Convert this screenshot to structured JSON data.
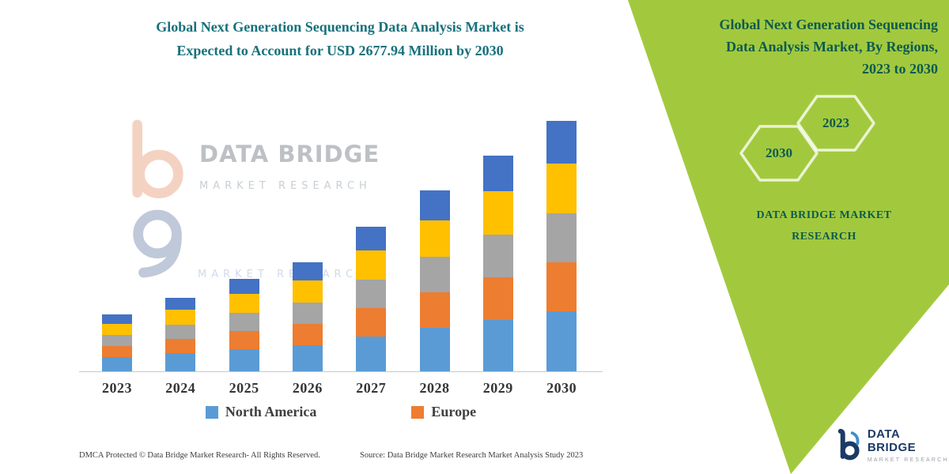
{
  "left_panel": {
    "title_line1": "Global Next Generation Sequencing Data Analysis Market is",
    "title_line2": "Expected to Account for USD 2677.94 Million by 2030"
  },
  "chart_data": {
    "type": "bar",
    "stacked": true,
    "title": "Global Next Generation Sequencing Data Analysis Market is Expected to Account for USD 2677.94 Million by 2030",
    "categories": [
      "2023",
      "2024",
      "2025",
      "2026",
      "2027",
      "2028",
      "2029",
      "2030"
    ],
    "series": [
      {
        "name": "North America",
        "color": "#5b9bd5",
        "values": [
          152,
          194,
          237,
          279,
          372,
          465,
          549,
          642
        ]
      },
      {
        "name": "Europe",
        "color": "#ed7d31",
        "values": [
          118,
          152,
          194,
          228,
          304,
          380,
          456,
          524
        ]
      },
      {
        "name": "",
        "color": "#a5a5a5",
        "values": [
          118,
          152,
          194,
          228,
          304,
          380,
          456,
          524
        ]
      },
      {
        "name": "",
        "color": "#ffc000",
        "values": [
          118,
          161,
          203,
          237,
          313,
          389,
          465,
          532
        ]
      },
      {
        "name": "",
        "color": "#4472c4",
        "values": [
          101,
          127,
          161,
          194,
          253,
          321,
          380,
          456
        ]
      }
    ],
    "totals_estimated": [
      607,
      786,
      989,
      1166,
      1546,
      1935,
      2306,
      2678
    ],
    "unit": "USD Million (estimated; 2030 total anchored to USD 2677.94 Million stated in title)",
    "ylim": [
      0,
      2800
    ],
    "grid": false,
    "legend_position": "bottom",
    "legend": [
      {
        "label": "North America",
        "color": "#5b9bd5"
      },
      {
        "label": "Europe",
        "color": "#ed7d31"
      }
    ]
  },
  "watermark": {
    "brand": "DATA BRIDGE",
    "sub": "MARKET RESEARCH",
    "sub2": "MARKET RESEARCH"
  },
  "footer": {
    "dmca": "DMCA Protected © Data Bridge Market Research-  All Rights Reserved.",
    "source": "Source: Data Bridge Market Research  Market Analysis Study 2023"
  },
  "right_panel": {
    "title_lines": [
      "Global Next Generation Sequencing",
      "Data Analysis Market, By Regions,",
      "2023 to 2030"
    ],
    "hex_years": [
      "2030",
      "2023"
    ],
    "brand_line1": "DATA BRIDGE MARKET",
    "brand_line2": "RESEARCH"
  },
  "logo": {
    "name": "DATA BRIDGE",
    "sub": "MARKET RESEARCH"
  },
  "colors": {
    "green_panel": "#a2c93e",
    "left_title_teal": "#17717c",
    "right_panel_teal": "#0d5a4e",
    "logo_navy": "#1c3a66"
  }
}
